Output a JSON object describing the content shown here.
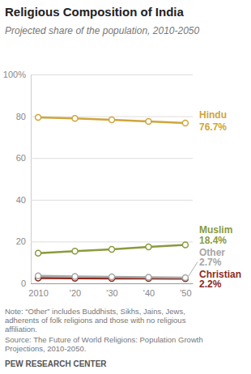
{
  "chart_data": {
    "type": "line",
    "title": "Religious Composition of India",
    "subtitle": "Projected share of the population, 2010-2050",
    "x": [
      2010,
      2020,
      2030,
      2040,
      2050
    ],
    "xlim": [
      2008,
      2052
    ],
    "xticks": [
      2010,
      {
        "value": 2020,
        "label": "'20"
      },
      {
        "value": 2030,
        "label": "'30"
      },
      {
        "value": 2040,
        "label": "'40"
      },
      {
        "value": 2050,
        "label": "'50"
      }
    ],
    "ylim": [
      0,
      100
    ],
    "yticks": [
      0,
      20,
      40,
      60,
      80,
      {
        "value": 100,
        "label": "100%"
      }
    ],
    "grid": true,
    "marker": "circle",
    "series": [
      {
        "name": "Hindu",
        "color": "#cfa53c",
        "values": [
          79.5,
          79.0,
          78.3,
          77.5,
          76.7
        ],
        "value_labels": [
          null,
          null,
          null,
          null,
          "76.7%"
        ]
      },
      {
        "name": "Muslim",
        "color": "#8a9a3e",
        "values": [
          14.4,
          15.4,
          16.3,
          17.4,
          18.4
        ],
        "value_labels": [
          null,
          null,
          null,
          null,
          "18.4%"
        ]
      },
      {
        "name": "Other",
        "color": "#a6a6a6",
        "values": [
          3.6,
          3.3,
          3.1,
          2.9,
          2.7
        ],
        "value_labels": [
          null,
          null,
          null,
          null,
          "2.7%"
        ]
      },
      {
        "name": "Christian",
        "color": "#8c2a1f",
        "values": [
          2.5,
          2.4,
          2.3,
          2.3,
          2.2
        ],
        "value_labels": [
          null,
          null,
          null,
          null,
          "2.2%"
        ]
      }
    ],
    "note": [
      "Note: “Other” includes Buddhists, Sikhs, Jains, Jews,",
      "adherents of folk religions and those with no religious",
      "affiliation."
    ],
    "source": [
      "Source: The Future of World Religions: Population Growth",
      "Projections, 2010-2050."
    ],
    "credit": "PEW RESEARCH CENTER"
  }
}
